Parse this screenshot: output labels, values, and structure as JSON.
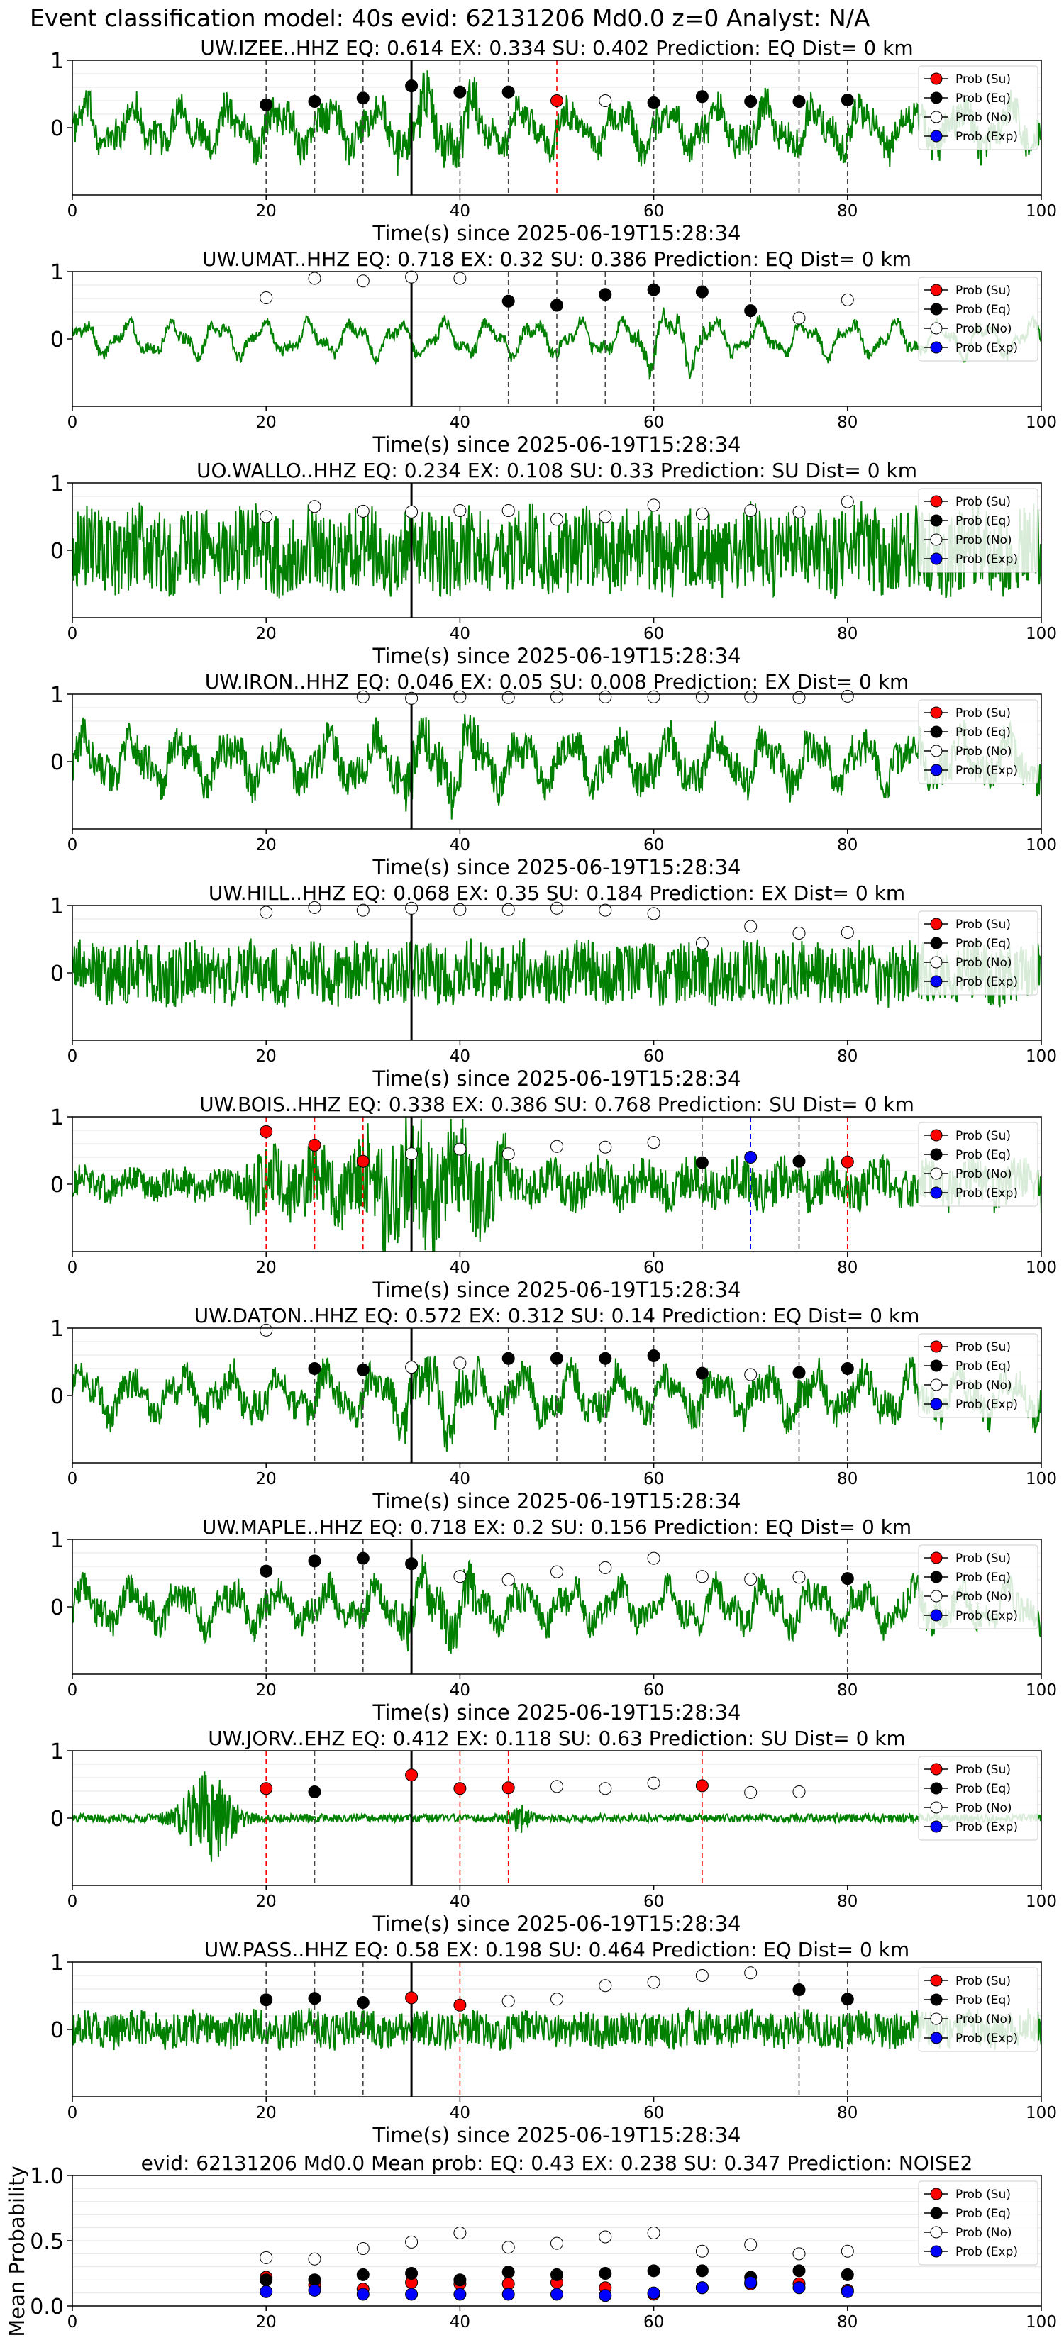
{
  "page_title": "Event classification model: 40s evid: 62131206 Md0.0 z=0 Analyst: N/A",
  "legend_labels": [
    "Prob (Su)",
    "Prob (Eq)",
    "Prob (No)",
    "Prob (Exp)"
  ],
  "colors": {
    "su": "#ff0000",
    "eq": "#000000",
    "no": "#ffffff",
    "exp": "#0000ff",
    "waveform": "#008000"
  },
  "chart_data": [
    {
      "type": "line",
      "station": "UW.IZEE..HHZ",
      "title": "UW.IZEE..HHZ   EQ: 0.614  EX: 0.334  SU: 0.402   Prediction: EQ    Dist= 0 km",
      "xlabel": "Time(s) since 2025-06-19T15:28:34",
      "xlim": [
        0,
        100
      ],
      "ylim": [
        -1,
        1
      ],
      "xticks": [
        0,
        20,
        40,
        60,
        80,
        100
      ],
      "yticks": [
        0,
        1
      ],
      "waveform": {
        "style": "mixed",
        "amp": 0.55
      },
      "arrival": 35,
      "points": [
        {
          "x": 20,
          "y": 0.34,
          "c": "eq"
        },
        {
          "x": 25,
          "y": 0.39,
          "c": "eq"
        },
        {
          "x": 30,
          "y": 0.44,
          "c": "eq"
        },
        {
          "x": 35,
          "y": 0.62,
          "c": "eq"
        },
        {
          "x": 40,
          "y": 0.53,
          "c": "eq"
        },
        {
          "x": 45,
          "y": 0.53,
          "c": "eq"
        },
        {
          "x": 50,
          "y": 0.4,
          "c": "su"
        },
        {
          "x": 55,
          "y": 0.4,
          "c": "no"
        },
        {
          "x": 60,
          "y": 0.37,
          "c": "eq"
        },
        {
          "x": 65,
          "y": 0.46,
          "c": "eq"
        },
        {
          "x": 70,
          "y": 0.39,
          "c": "eq"
        },
        {
          "x": 75,
          "y": 0.39,
          "c": "eq"
        },
        {
          "x": 80,
          "y": 0.41,
          "c": "eq"
        }
      ]
    },
    {
      "type": "line",
      "station": "UW.UMAT..HHZ",
      "title": "UW.UMAT..HHZ   EQ: 0.718  EX: 0.32  SU: 0.386   Prediction: EQ    Dist= 0 km",
      "xlabel": "Time(s) since 2025-06-19T15:28:34",
      "xlim": [
        0,
        100
      ],
      "ylim": [
        -1,
        1
      ],
      "xticks": [
        0,
        20,
        40,
        60,
        80,
        100
      ],
      "yticks": [
        0,
        1
      ],
      "waveform": {
        "style": "smooth",
        "amp": 0.35
      },
      "arrival": 35,
      "points": [
        {
          "x": 20,
          "y": 0.61,
          "c": "no"
        },
        {
          "x": 25,
          "y": 0.9,
          "c": "no"
        },
        {
          "x": 30,
          "y": 0.86,
          "c": "no"
        },
        {
          "x": 35,
          "y": 0.92,
          "c": "no"
        },
        {
          "x": 40,
          "y": 0.9,
          "c": "no"
        },
        {
          "x": 45,
          "y": 0.56,
          "c": "eq"
        },
        {
          "x": 50,
          "y": 0.5,
          "c": "eq"
        },
        {
          "x": 55,
          "y": 0.66,
          "c": "eq"
        },
        {
          "x": 60,
          "y": 0.73,
          "c": "eq"
        },
        {
          "x": 65,
          "y": 0.7,
          "c": "eq"
        },
        {
          "x": 70,
          "y": 0.42,
          "c": "eq"
        },
        {
          "x": 75,
          "y": 0.31,
          "c": "no"
        },
        {
          "x": 80,
          "y": 0.58,
          "c": "no"
        }
      ]
    },
    {
      "type": "line",
      "station": "UO.WALLO..HHZ",
      "title": "UO.WALLO..HHZ   EQ: 0.234  EX: 0.108  SU: 0.33   Prediction: SU    Dist= 0 km",
      "xlabel": "Time(s) since 2025-06-19T15:28:34",
      "xlim": [
        0,
        100
      ],
      "ylim": [
        -1,
        1
      ],
      "xticks": [
        0,
        20,
        40,
        60,
        80,
        100
      ],
      "yticks": [
        0,
        1
      ],
      "waveform": {
        "style": "noisy",
        "amp": 0.7
      },
      "arrival": 35,
      "points": [
        {
          "x": 20,
          "y": 0.5,
          "c": "no"
        },
        {
          "x": 25,
          "y": 0.65,
          "c": "no"
        },
        {
          "x": 30,
          "y": 0.58,
          "c": "no"
        },
        {
          "x": 35,
          "y": 0.57,
          "c": "no"
        },
        {
          "x": 40,
          "y": 0.59,
          "c": "no"
        },
        {
          "x": 45,
          "y": 0.59,
          "c": "no"
        },
        {
          "x": 50,
          "y": 0.46,
          "c": "no"
        },
        {
          "x": 55,
          "y": 0.5,
          "c": "no"
        },
        {
          "x": 60,
          "y": 0.67,
          "c": "no"
        },
        {
          "x": 65,
          "y": 0.54,
          "c": "no"
        },
        {
          "x": 70,
          "y": 0.59,
          "c": "no"
        },
        {
          "x": 75,
          "y": 0.57,
          "c": "no"
        },
        {
          "x": 80,
          "y": 0.72,
          "c": "no"
        }
      ]
    },
    {
      "type": "line",
      "station": "UW.IRON..HHZ",
      "title": "UW.IRON..HHZ   EQ: 0.046  EX: 0.05  SU: 0.008   Prediction: EX    Dist= 0 km",
      "xlabel": "Time(s) since 2025-06-19T15:28:34",
      "xlim": [
        0,
        100
      ],
      "ylim": [
        -1,
        1
      ],
      "xticks": [
        0,
        20,
        40,
        60,
        80,
        100
      ],
      "yticks": [
        0,
        1
      ],
      "waveform": {
        "style": "mixed",
        "amp": 0.6
      },
      "arrival": 35,
      "points": [
        {
          "x": 30,
          "y": 0.96,
          "c": "no"
        },
        {
          "x": 35,
          "y": 0.94,
          "c": "no"
        },
        {
          "x": 40,
          "y": 0.96,
          "c": "no"
        },
        {
          "x": 45,
          "y": 0.95,
          "c": "no"
        },
        {
          "x": 50,
          "y": 0.96,
          "c": "no"
        },
        {
          "x": 55,
          "y": 0.96,
          "c": "no"
        },
        {
          "x": 60,
          "y": 0.96,
          "c": "no"
        },
        {
          "x": 65,
          "y": 0.96,
          "c": "no"
        },
        {
          "x": 70,
          "y": 0.96,
          "c": "no"
        },
        {
          "x": 75,
          "y": 0.95,
          "c": "no"
        },
        {
          "x": 80,
          "y": 0.97,
          "c": "no"
        }
      ]
    },
    {
      "type": "line",
      "station": "UW.HILL..HHZ",
      "title": "UW.HILL..HHZ   EQ: 0.068  EX: 0.35  SU: 0.184   Prediction: EX    Dist= 0 km",
      "xlabel": "Time(s) since 2025-06-19T15:28:34",
      "xlim": [
        0,
        100
      ],
      "ylim": [
        -1,
        1
      ],
      "xticks": [
        0,
        20,
        40,
        60,
        80,
        100
      ],
      "yticks": [
        0,
        1
      ],
      "waveform": {
        "style": "noisy",
        "amp": 0.5
      },
      "arrival": 35,
      "points": [
        {
          "x": 20,
          "y": 0.9,
          "c": "no"
        },
        {
          "x": 25,
          "y": 0.97,
          "c": "no"
        },
        {
          "x": 30,
          "y": 0.93,
          "c": "no"
        },
        {
          "x": 35,
          "y": 0.96,
          "c": "no"
        },
        {
          "x": 40,
          "y": 0.94,
          "c": "no"
        },
        {
          "x": 45,
          "y": 0.94,
          "c": "no"
        },
        {
          "x": 50,
          "y": 0.96,
          "c": "no"
        },
        {
          "x": 55,
          "y": 0.93,
          "c": "no"
        },
        {
          "x": 60,
          "y": 0.88,
          "c": "no"
        },
        {
          "x": 65,
          "y": 0.44,
          "c": "no"
        },
        {
          "x": 70,
          "y": 0.69,
          "c": "no"
        },
        {
          "x": 75,
          "y": 0.59,
          "c": "no"
        },
        {
          "x": 80,
          "y": 0.6,
          "c": "no"
        }
      ]
    },
    {
      "type": "line",
      "station": "UW.BOIS..HHZ",
      "title": "UW.BOIS..HHZ   EQ: 0.338  EX: 0.386  SU: 0.768   Prediction: SU    Dist= 0 km",
      "xlabel": "Time(s) since 2025-06-19T15:28:34",
      "xlim": [
        0,
        100
      ],
      "ylim": [
        -1,
        1
      ],
      "xticks": [
        0,
        20,
        40,
        60,
        80,
        100
      ],
      "yticks": [
        0,
        1
      ],
      "waveform": {
        "style": "burst",
        "amp": 0.8
      },
      "arrival": 35,
      "points": [
        {
          "x": 20,
          "y": 0.78,
          "c": "su"
        },
        {
          "x": 25,
          "y": 0.58,
          "c": "su"
        },
        {
          "x": 30,
          "y": 0.34,
          "c": "su"
        },
        {
          "x": 35,
          "y": 0.45,
          "c": "no"
        },
        {
          "x": 40,
          "y": 0.52,
          "c": "no"
        },
        {
          "x": 45,
          "y": 0.45,
          "c": "no"
        },
        {
          "x": 50,
          "y": 0.56,
          "c": "no"
        },
        {
          "x": 55,
          "y": 0.55,
          "c": "no"
        },
        {
          "x": 60,
          "y": 0.62,
          "c": "no"
        },
        {
          "x": 65,
          "y": 0.32,
          "c": "eq"
        },
        {
          "x": 70,
          "y": 0.4,
          "c": "exp"
        },
        {
          "x": 75,
          "y": 0.34,
          "c": "eq"
        },
        {
          "x": 80,
          "y": 0.33,
          "c": "su"
        }
      ]
    },
    {
      "type": "line",
      "station": "UW.DATON..HHZ",
      "title": "UW.DATON..HHZ   EQ: 0.572  EX: 0.312  SU: 0.14   Prediction: EQ    Dist= 0 km",
      "xlabel": "Time(s) since 2025-06-19T15:28:34",
      "xlim": [
        0,
        100
      ],
      "ylim": [
        -1,
        1
      ],
      "xticks": [
        0,
        20,
        40,
        60,
        80,
        100
      ],
      "yticks": [
        0,
        1
      ],
      "waveform": {
        "style": "mixed",
        "amp": 0.55
      },
      "arrival": 35,
      "points": [
        {
          "x": 20,
          "y": 0.97,
          "c": "no"
        },
        {
          "x": 25,
          "y": 0.4,
          "c": "eq"
        },
        {
          "x": 30,
          "y": 0.38,
          "c": "eq"
        },
        {
          "x": 35,
          "y": 0.42,
          "c": "no"
        },
        {
          "x": 40,
          "y": 0.48,
          "c": "no"
        },
        {
          "x": 45,
          "y": 0.55,
          "c": "eq"
        },
        {
          "x": 50,
          "y": 0.55,
          "c": "eq"
        },
        {
          "x": 55,
          "y": 0.55,
          "c": "eq"
        },
        {
          "x": 60,
          "y": 0.59,
          "c": "eq"
        },
        {
          "x": 65,
          "y": 0.33,
          "c": "eq"
        },
        {
          "x": 70,
          "y": 0.31,
          "c": "no"
        },
        {
          "x": 75,
          "y": 0.34,
          "c": "eq"
        },
        {
          "x": 80,
          "y": 0.4,
          "c": "eq"
        }
      ]
    },
    {
      "type": "line",
      "station": "UW.MAPLE..HHZ",
      "title": "UW.MAPLE..HHZ   EQ: 0.718  EX: 0.2  SU: 0.156   Prediction: EQ    Dist= 0 km",
      "xlabel": "Time(s) since 2025-06-19T15:28:34",
      "xlim": [
        0,
        100
      ],
      "ylim": [
        -1,
        1
      ],
      "xticks": [
        0,
        20,
        40,
        60,
        80,
        100
      ],
      "yticks": [
        0,
        1
      ],
      "waveform": {
        "style": "mixed",
        "amp": 0.5
      },
      "arrival": 35,
      "points": [
        {
          "x": 20,
          "y": 0.53,
          "c": "eq"
        },
        {
          "x": 25,
          "y": 0.68,
          "c": "eq"
        },
        {
          "x": 30,
          "y": 0.72,
          "c": "eq"
        },
        {
          "x": 35,
          "y": 0.64,
          "c": "eq"
        },
        {
          "x": 40,
          "y": 0.45,
          "c": "no"
        },
        {
          "x": 45,
          "y": 0.4,
          "c": "no"
        },
        {
          "x": 50,
          "y": 0.52,
          "c": "no"
        },
        {
          "x": 55,
          "y": 0.58,
          "c": "no"
        },
        {
          "x": 60,
          "y": 0.72,
          "c": "no"
        },
        {
          "x": 65,
          "y": 0.45,
          "c": "no"
        },
        {
          "x": 70,
          "y": 0.41,
          "c": "no"
        },
        {
          "x": 75,
          "y": 0.44,
          "c": "no"
        },
        {
          "x": 80,
          "y": 0.42,
          "c": "eq"
        }
      ]
    },
    {
      "type": "line",
      "station": "UW.JORV..EHZ",
      "title": "UW.JORV..EHZ   EQ: 0.412  EX: 0.118  SU: 0.63   Prediction: SU    Dist= 0 km",
      "xlabel": "Time(s) since 2025-06-19T15:28:34",
      "xlim": [
        0,
        100
      ],
      "ylim": [
        -1,
        1
      ],
      "xticks": [
        0,
        20,
        40,
        60,
        80,
        100
      ],
      "yticks": [
        0,
        1
      ],
      "waveform": {
        "style": "quiet",
        "amp": 0.06
      },
      "arrival": 35,
      "points": [
        {
          "x": 20,
          "y": 0.44,
          "c": "su"
        },
        {
          "x": 25,
          "y": 0.39,
          "c": "eq"
        },
        {
          "x": 35,
          "y": 0.64,
          "c": "su"
        },
        {
          "x": 40,
          "y": 0.44,
          "c": "su"
        },
        {
          "x": 45,
          "y": 0.45,
          "c": "su"
        },
        {
          "x": 50,
          "y": 0.47,
          "c": "no"
        },
        {
          "x": 55,
          "y": 0.44,
          "c": "no"
        },
        {
          "x": 60,
          "y": 0.52,
          "c": "no"
        },
        {
          "x": 65,
          "y": 0.48,
          "c": "su"
        },
        {
          "x": 70,
          "y": 0.38,
          "c": "no"
        },
        {
          "x": 75,
          "y": 0.39,
          "c": "no"
        }
      ]
    },
    {
      "type": "line",
      "station": "UW.PASS..HHZ",
      "title": "UW.PASS..HHZ   EQ: 0.58  EX: 0.198  SU: 0.464   Prediction: EQ    Dist= 0 km",
      "xlabel": "Time(s) since 2025-06-19T15:28:34",
      "xlim": [
        0,
        100
      ],
      "ylim": [
        -1,
        1
      ],
      "xticks": [
        0,
        20,
        40,
        60,
        80,
        100
      ],
      "yticks": [
        0,
        1
      ],
      "waveform": {
        "style": "noisy",
        "amp": 0.3
      },
      "arrival": 35,
      "points": [
        {
          "x": 20,
          "y": 0.44,
          "c": "eq"
        },
        {
          "x": 25,
          "y": 0.46,
          "c": "eq"
        },
        {
          "x": 30,
          "y": 0.4,
          "c": "eq"
        },
        {
          "x": 35,
          "y": 0.47,
          "c": "su"
        },
        {
          "x": 40,
          "y": 0.36,
          "c": "su"
        },
        {
          "x": 45,
          "y": 0.42,
          "c": "no"
        },
        {
          "x": 50,
          "y": 0.45,
          "c": "no"
        },
        {
          "x": 55,
          "y": 0.65,
          "c": "no"
        },
        {
          "x": 60,
          "y": 0.7,
          "c": "no"
        },
        {
          "x": 65,
          "y": 0.8,
          "c": "no"
        },
        {
          "x": 70,
          "y": 0.84,
          "c": "no"
        },
        {
          "x": 75,
          "y": 0.59,
          "c": "eq"
        },
        {
          "x": 80,
          "y": 0.45,
          "c": "eq"
        }
      ]
    },
    {
      "type": "scatter",
      "title": "evid: 62131206  Md0.0   Mean prob:   EQ: 0.43  EX: 0.238  SU: 0.347   Prediction: NOISE2",
      "xlabel": "",
      "ylabel": "Mean Probability",
      "xlim": [
        0,
        100
      ],
      "ylim": [
        0,
        1
      ],
      "xticks": [
        0,
        20,
        40,
        60,
        80,
        100
      ],
      "yticks": [
        0.0,
        0.5,
        1.0
      ],
      "series": [
        {
          "name": "Prob (Su)",
          "c": "su",
          "x": [
            20,
            25,
            30,
            35,
            40,
            45,
            50,
            55,
            60,
            65,
            70,
            75,
            80
          ],
          "y": [
            0.22,
            0.16,
            0.13,
            0.18,
            0.17,
            0.17,
            0.18,
            0.14,
            0.09,
            0.14,
            0.17,
            0.17,
            0.12
          ]
        },
        {
          "name": "Prob (Eq)",
          "c": "eq",
          "x": [
            20,
            25,
            30,
            35,
            40,
            45,
            50,
            55,
            60,
            65,
            70,
            75,
            80
          ],
          "y": [
            0.2,
            0.2,
            0.24,
            0.25,
            0.2,
            0.26,
            0.24,
            0.25,
            0.27,
            0.27,
            0.22,
            0.27,
            0.24
          ]
        },
        {
          "name": "Prob (No)",
          "c": "no",
          "x": [
            20,
            25,
            30,
            35,
            40,
            45,
            50,
            55,
            60,
            65,
            70,
            75,
            80
          ],
          "y": [
            0.37,
            0.36,
            0.44,
            0.49,
            0.56,
            0.45,
            0.48,
            0.53,
            0.56,
            0.42,
            0.47,
            0.4,
            0.42
          ]
        },
        {
          "name": "Prob (Exp)",
          "c": "exp",
          "x": [
            20,
            25,
            30,
            35,
            40,
            45,
            50,
            55,
            60,
            65,
            70,
            75,
            80
          ],
          "y": [
            0.11,
            0.12,
            0.09,
            0.09,
            0.09,
            0.09,
            0.09,
            0.08,
            0.1,
            0.14,
            0.18,
            0.14,
            0.11
          ]
        }
      ]
    }
  ]
}
